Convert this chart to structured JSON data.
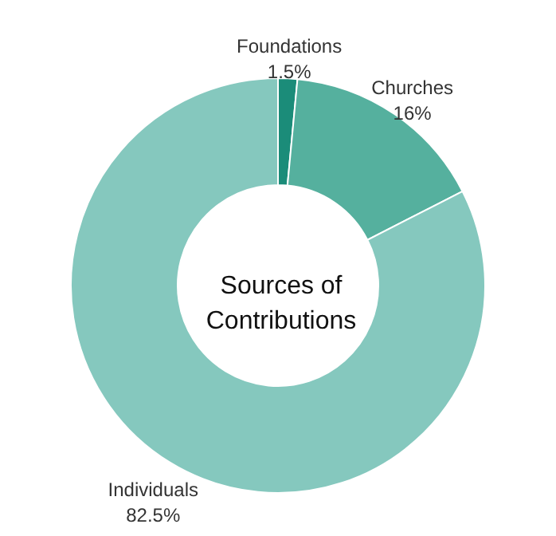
{
  "chart_data": {
    "type": "donut",
    "title": "Sources of Contributions",
    "categories": [
      "Foundations",
      "Churches",
      "Individuals"
    ],
    "values": [
      1.5,
      16,
      82.5
    ],
    "colors": [
      "#1b8c79",
      "#55b09e",
      "#85c8be"
    ],
    "value_labels": [
      "1.5%",
      "16%",
      "82.5%"
    ],
    "legend": false
  }
}
